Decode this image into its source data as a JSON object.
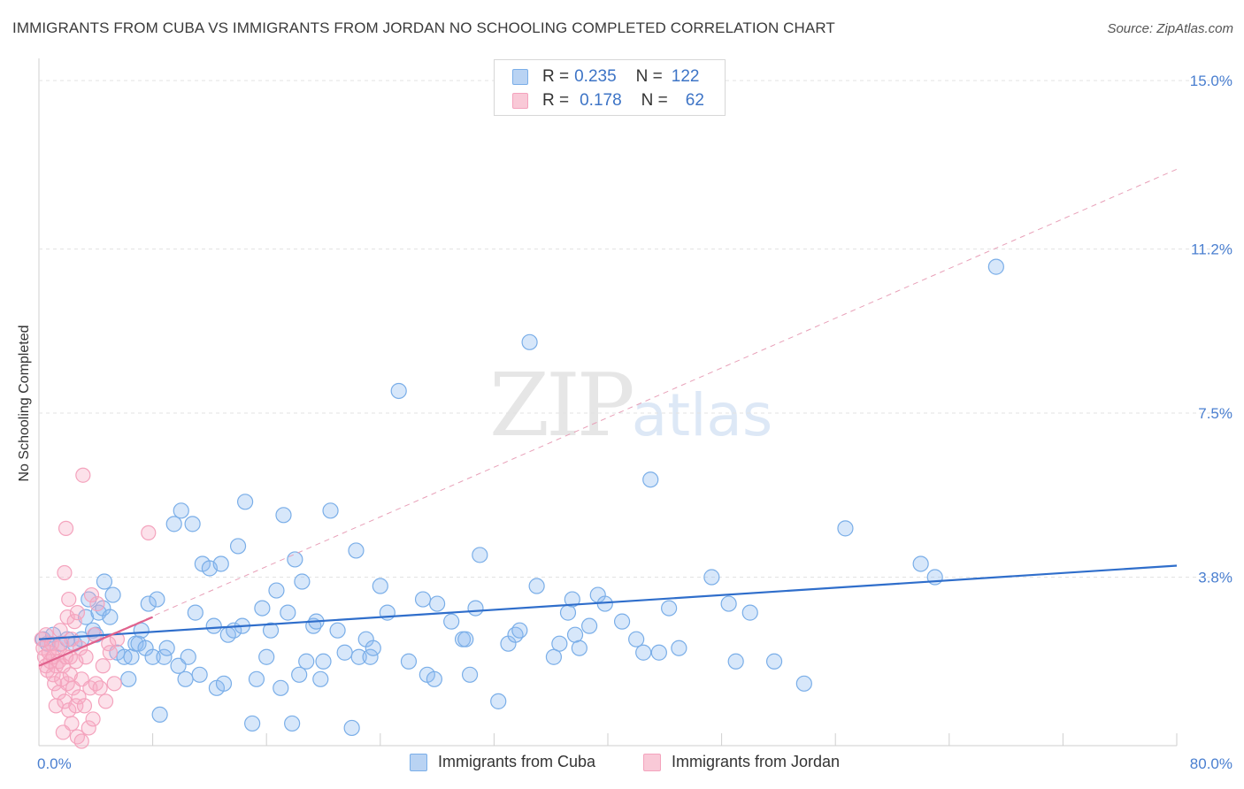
{
  "chart_data": {
    "type": "scatter",
    "title": "IMMIGRANTS FROM CUBA VS IMMIGRANTS FROM JORDAN NO SCHOOLING COMPLETED CORRELATION CHART",
    "source": "Source: ZipAtlas.com",
    "xlabel": "",
    "ylabel": "No Schooling Completed",
    "xlim": [
      0,
      80
    ],
    "ylim": [
      0,
      15.5
    ],
    "x_tick_labels": [
      "0.0%",
      "80.0%"
    ],
    "y_ticks": [
      {
        "value": 15.0,
        "label": "15.0%"
      },
      {
        "value": 11.2,
        "label": "11.2%"
      },
      {
        "value": 7.5,
        "label": "7.5%"
      },
      {
        "value": 3.8,
        "label": "3.8%"
      }
    ],
    "watermark": {
      "zip": "ZIP",
      "atlas": "atlas"
    },
    "legend": [
      {
        "r_label": "R =",
        "r_value": "0.235",
        "n_label": "N =",
        "n_value": "122"
      },
      {
        "r_label": "R =",
        "r_value": "0.178",
        "n_label": "N =",
        "n_value": "62"
      }
    ],
    "series": [
      {
        "name": "Immigrants from Cuba",
        "color": "#7aaee8",
        "line_color": "#2f6ecb",
        "trend": {
          "x0": 0.0,
          "y0": 2.4,
          "x1": 80.0,
          "y1": 4.06,
          "style": "solid"
        },
        "points": [
          [
            0.3,
            2.4
          ],
          [
            0.6,
            2.3
          ],
          [
            1.0,
            2.5
          ],
          [
            1.5,
            2.3
          ],
          [
            2.0,
            2.4
          ],
          [
            2.5,
            2.3
          ],
          [
            3.0,
            2.4
          ],
          [
            3.3,
            2.9
          ],
          [
            3.5,
            3.3
          ],
          [
            3.8,
            2.6
          ],
          [
            4.0,
            2.5
          ],
          [
            4.2,
            3.0
          ],
          [
            4.5,
            3.1
          ],
          [
            4.6,
            3.7
          ],
          [
            5.0,
            2.9
          ],
          [
            5.2,
            3.4
          ],
          [
            5.5,
            2.1
          ],
          [
            6.0,
            2.0
          ],
          [
            6.3,
            1.5
          ],
          [
            6.5,
            2.0
          ],
          [
            6.8,
            2.3
          ],
          [
            7.0,
            2.3
          ],
          [
            7.2,
            2.6
          ],
          [
            7.5,
            2.2
          ],
          [
            7.7,
            3.2
          ],
          [
            8.0,
            2.0
          ],
          [
            8.3,
            3.3
          ],
          [
            8.5,
            0.7
          ],
          [
            8.8,
            2.0
          ],
          [
            9.0,
            2.2
          ],
          [
            9.5,
            5.0
          ],
          [
            9.8,
            1.8
          ],
          [
            10.0,
            5.3
          ],
          [
            10.3,
            1.5
          ],
          [
            10.5,
            2.0
          ],
          [
            10.8,
            5.0
          ],
          [
            11.0,
            3.0
          ],
          [
            11.3,
            1.6
          ],
          [
            11.5,
            4.1
          ],
          [
            12.0,
            4.0
          ],
          [
            12.3,
            2.7
          ],
          [
            12.5,
            1.3
          ],
          [
            12.8,
            4.1
          ],
          [
            13.0,
            1.4
          ],
          [
            13.3,
            2.5
          ],
          [
            13.7,
            2.6
          ],
          [
            14.0,
            4.5
          ],
          [
            14.3,
            2.7
          ],
          [
            14.5,
            5.5
          ],
          [
            15.0,
            0.5
          ],
          [
            15.3,
            1.5
          ],
          [
            15.7,
            3.1
          ],
          [
            16.0,
            2.0
          ],
          [
            16.3,
            2.6
          ],
          [
            16.7,
            3.5
          ],
          [
            17.0,
            1.3
          ],
          [
            17.2,
            5.2
          ],
          [
            17.5,
            3.0
          ],
          [
            17.8,
            0.5
          ],
          [
            18.0,
            4.2
          ],
          [
            18.3,
            1.6
          ],
          [
            18.5,
            3.7
          ],
          [
            18.8,
            1.9
          ],
          [
            19.3,
            2.7
          ],
          [
            19.5,
            2.8
          ],
          [
            19.8,
            1.5
          ],
          [
            20.0,
            1.9
          ],
          [
            20.5,
            5.3
          ],
          [
            21.0,
            2.6
          ],
          [
            21.5,
            2.1
          ],
          [
            22.0,
            0.4
          ],
          [
            22.3,
            4.4
          ],
          [
            22.5,
            2.0
          ],
          [
            23.0,
            2.4
          ],
          [
            23.3,
            2.0
          ],
          [
            23.5,
            2.2
          ],
          [
            24.0,
            3.6
          ],
          [
            24.5,
            3.0
          ],
          [
            25.3,
            8.0
          ],
          [
            26.0,
            1.9
          ],
          [
            27.0,
            3.3
          ],
          [
            27.3,
            1.6
          ],
          [
            27.8,
            1.5
          ],
          [
            28.0,
            3.2
          ],
          [
            29.0,
            2.8
          ],
          [
            29.8,
            2.4
          ],
          [
            30.0,
            2.4
          ],
          [
            30.3,
            1.6
          ],
          [
            30.7,
            3.1
          ],
          [
            31.0,
            4.3
          ],
          [
            32.3,
            1.0
          ],
          [
            33.0,
            2.3
          ],
          [
            33.5,
            2.5
          ],
          [
            33.8,
            2.6
          ],
          [
            34.5,
            9.1
          ],
          [
            35.0,
            3.6
          ],
          [
            36.2,
            2.0
          ],
          [
            36.6,
            2.3
          ],
          [
            37.2,
            3.0
          ],
          [
            37.5,
            3.3
          ],
          [
            37.7,
            2.5
          ],
          [
            38.0,
            2.2
          ],
          [
            38.7,
            2.7
          ],
          [
            39.3,
            3.4
          ],
          [
            39.8,
            3.2
          ],
          [
            41.0,
            2.8
          ],
          [
            42.0,
            2.4
          ],
          [
            42.5,
            2.1
          ],
          [
            43.0,
            6.0
          ],
          [
            43.6,
            2.1
          ],
          [
            44.3,
            3.1
          ],
          [
            45.0,
            2.2
          ],
          [
            47.3,
            3.8
          ],
          [
            48.5,
            3.2
          ],
          [
            49.0,
            1.9
          ],
          [
            50.0,
            3.0
          ],
          [
            51.7,
            1.9
          ],
          [
            53.8,
            1.4
          ],
          [
            56.7,
            4.9
          ],
          [
            62.0,
            4.1
          ],
          [
            63.0,
            3.8
          ],
          [
            67.3,
            10.8
          ]
        ]
      },
      {
        "name": "Immigrants from Jordan",
        "color": "#f4a3bd",
        "line_color": "#e0628d",
        "trend": {
          "x0": 0.0,
          "y0": 1.8,
          "x1": 8.0,
          "y1": 2.9,
          "style": "solid"
        },
        "trend_extended": {
          "x0": 0.0,
          "y0": 1.8,
          "x1": 80.0,
          "y1": 13.0,
          "style": "dashed"
        },
        "points": [
          [
            0.2,
            2.4
          ],
          [
            0.3,
            2.2
          ],
          [
            0.4,
            2.0
          ],
          [
            0.5,
            1.8
          ],
          [
            0.5,
            2.5
          ],
          [
            0.6,
            1.7
          ],
          [
            0.7,
            2.1
          ],
          [
            0.8,
            1.9
          ],
          [
            0.9,
            2.3
          ],
          [
            1.0,
            1.6
          ],
          [
            1.0,
            2.0
          ],
          [
            1.1,
            1.4
          ],
          [
            1.2,
            0.9
          ],
          [
            1.2,
            1.8
          ],
          [
            1.3,
            2.2
          ],
          [
            1.4,
            1.2
          ],
          [
            1.4,
            1.9
          ],
          [
            1.5,
            2.6
          ],
          [
            1.6,
            1.5
          ],
          [
            1.6,
            2.3
          ],
          [
            1.7,
            0.3
          ],
          [
            1.7,
            1.8
          ],
          [
            1.8,
            1.0
          ],
          [
            1.8,
            3.9
          ],
          [
            1.9,
            2.0
          ],
          [
            1.9,
            4.9
          ],
          [
            2.0,
            1.4
          ],
          [
            2.0,
            2.9
          ],
          [
            2.1,
            0.8
          ],
          [
            2.1,
            3.3
          ],
          [
            2.2,
            1.6
          ],
          [
            2.2,
            2.0
          ],
          [
            2.3,
            0.5
          ],
          [
            2.3,
            2.4
          ],
          [
            2.4,
            1.3
          ],
          [
            2.5,
            2.8
          ],
          [
            2.6,
            0.9
          ],
          [
            2.6,
            1.9
          ],
          [
            2.7,
            0.2
          ],
          [
            2.7,
            3.0
          ],
          [
            2.8,
            1.1
          ],
          [
            2.9,
            2.2
          ],
          [
            3.0,
            0.1
          ],
          [
            3.0,
            1.5
          ],
          [
            3.1,
            6.1
          ],
          [
            3.2,
            0.9
          ],
          [
            3.3,
            2.0
          ],
          [
            3.5,
            0.4
          ],
          [
            3.6,
            1.3
          ],
          [
            3.7,
            3.4
          ],
          [
            3.8,
            0.6
          ],
          [
            3.9,
            2.5
          ],
          [
            4.0,
            1.4
          ],
          [
            4.1,
            3.2
          ],
          [
            4.3,
            1.3
          ],
          [
            4.5,
            1.8
          ],
          [
            4.7,
            1.0
          ],
          [
            4.9,
            2.3
          ],
          [
            5.0,
            2.1
          ],
          [
            5.3,
            1.4
          ],
          [
            5.5,
            2.4
          ],
          [
            7.7,
            4.8
          ]
        ]
      }
    ]
  }
}
